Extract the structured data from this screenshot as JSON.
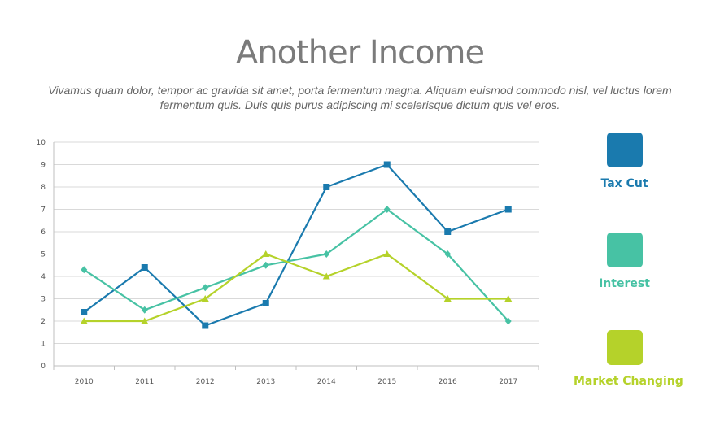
{
  "header": {
    "title": "Another Income",
    "subtitle_line1": "Vivamus quam dolor, tempor ac gravida sit amet, porta fermentum magna. Aliquam euismod commodo nisl, vel luctus lorem",
    "subtitle_line2": "fermentum quis. Duis quis purus adipiscing mi scelerisque dictum quis vel eros."
  },
  "chart_data": {
    "type": "line",
    "x": [
      "2010",
      "2011",
      "2012",
      "2013",
      "2014",
      "2015",
      "2016",
      "2017"
    ],
    "ylim": [
      0,
      10
    ],
    "yticks": [
      0,
      1,
      2,
      3,
      4,
      5,
      6,
      7,
      8,
      9,
      10
    ],
    "grid": true,
    "legend_position": "right",
    "series": [
      {
        "name": "Tax Cut",
        "color": "#1a7aae",
        "marker": "square",
        "values": [
          2.4,
          4.4,
          1.8,
          2.8,
          8,
          9,
          6,
          7
        ]
      },
      {
        "name": "Interest",
        "color": "#47c2a4",
        "marker": "diamond",
        "values": [
          4.3,
          2.5,
          3.5,
          4.5,
          5,
          7,
          5,
          2
        ]
      },
      {
        "name": "Market Changing",
        "color": "#b5d22a",
        "marker": "triangle",
        "values": [
          2,
          2,
          3,
          5,
          4,
          5,
          3,
          3
        ]
      }
    ]
  }
}
